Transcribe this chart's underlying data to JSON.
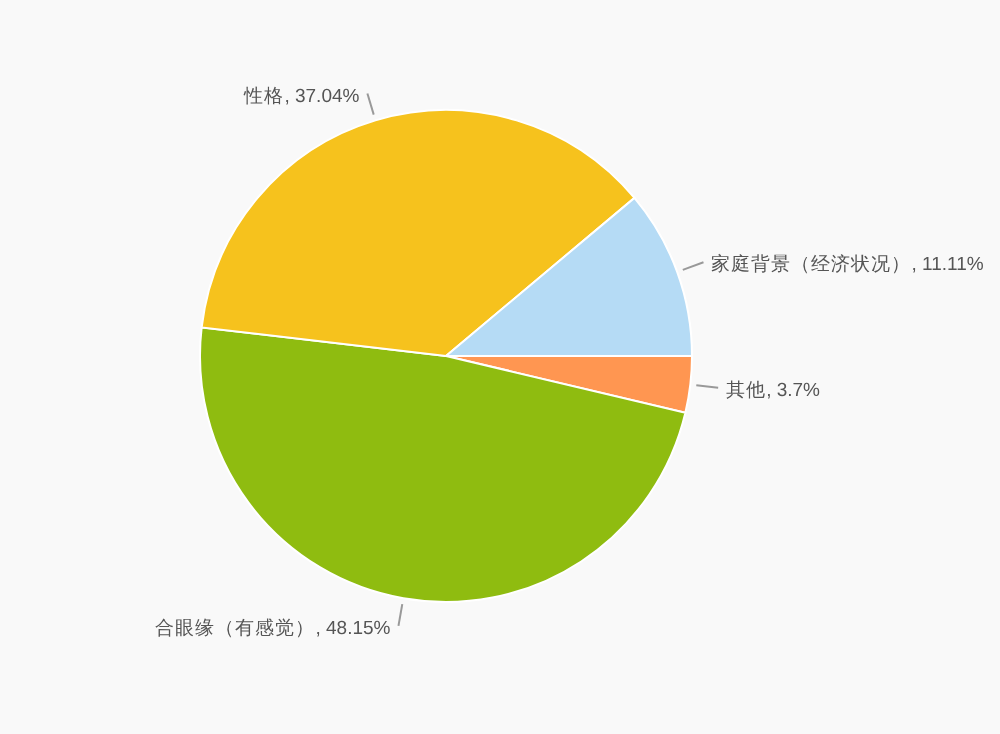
{
  "chart_data": {
    "type": "pie",
    "categories": [
      "其他",
      "合眼缘（有感觉）",
      "性格",
      "家庭背景（经济状况）"
    ],
    "values": [
      3.7,
      48.15,
      37.04,
      11.11
    ],
    "colors": [
      "#ff9651",
      "#8fbc10",
      "#f6c21d",
      "#b5dbf5"
    ],
    "value_labels": [
      ", 3.7%",
      ", 48.15%",
      ", 37.04%",
      ", 11.11%"
    ]
  }
}
